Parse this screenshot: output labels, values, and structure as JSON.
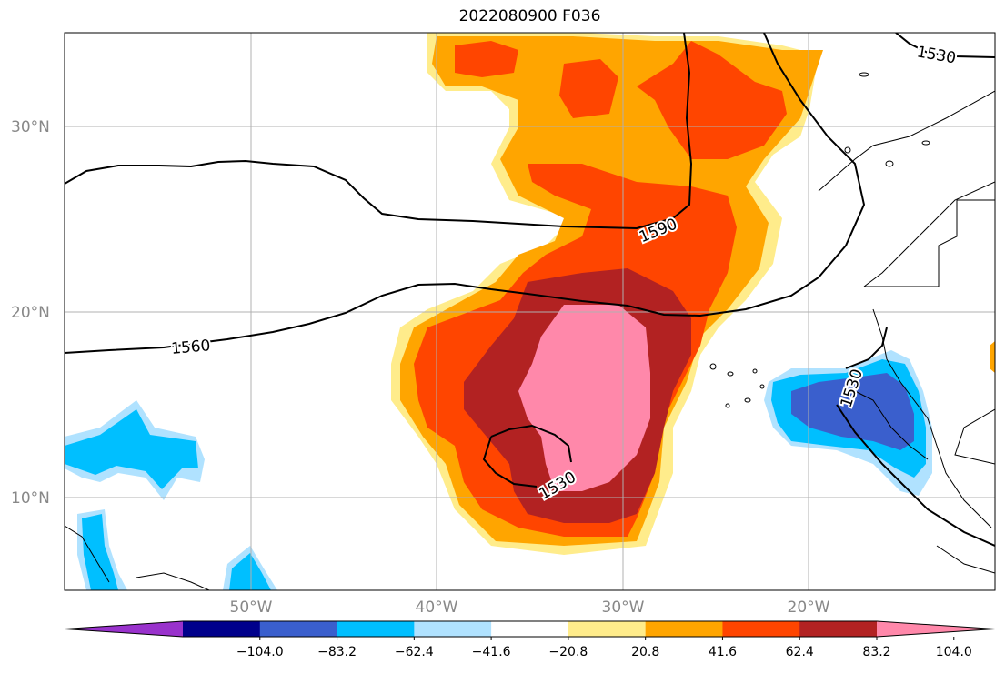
{
  "title": "2022080900 F036",
  "lat_labels": [
    "30°N",
    "20°N",
    "10°N"
  ],
  "lon_labels": [
    "50°W",
    "40°W",
    "30°W",
    "20°W"
  ],
  "contour_labels": [
    "1590",
    "1560",
    "1530",
    "1530",
    "1530"
  ],
  "colorbar": {
    "colors": [
      "#9932cc",
      "#00008b",
      "#3a5fcd",
      "#00bfff",
      "#b0e2ff",
      "#ffffff",
      "#ffec8b",
      "#ffa500",
      "#ff4500",
      "#b22222",
      "#ff88aa"
    ],
    "tick_labels": [
      "−104.0",
      "−83.2",
      "−62.4",
      "−41.6",
      "−20.8",
      "20.8",
      "41.6",
      "62.4",
      "83.2",
      "104.0"
    ]
  },
  "map_extent": {
    "lon": [
      -60,
      -10
    ],
    "lat": [
      5,
      35
    ]
  }
}
